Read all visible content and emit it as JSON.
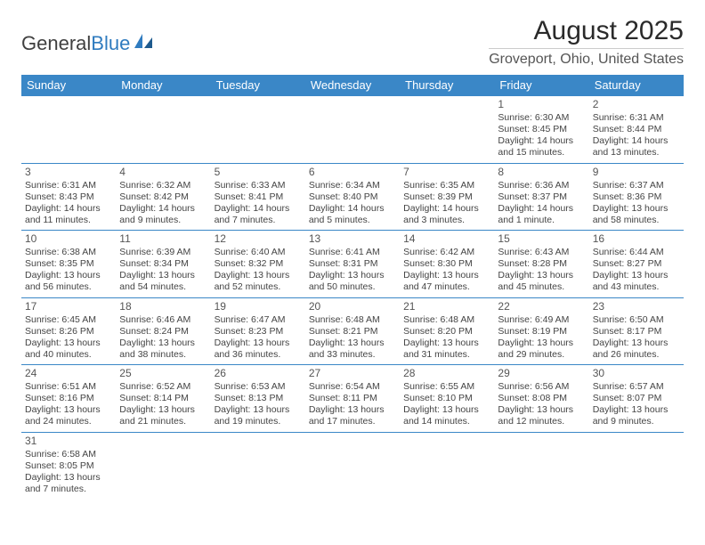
{
  "brand": {
    "part1": "General",
    "part2": "Blue"
  },
  "title": "August 2025",
  "location": "Groveport, Ohio, United States",
  "header_bg": "#3a87c7",
  "header_fg": "#ffffff",
  "row_border": "#3a87c7",
  "weekdays": [
    "Sunday",
    "Monday",
    "Tuesday",
    "Wednesday",
    "Thursday",
    "Friday",
    "Saturday"
  ],
  "weeks": [
    [
      null,
      null,
      null,
      null,
      null,
      {
        "d": "1",
        "sr": "Sunrise: 6:30 AM",
        "ss": "Sunset: 8:45 PM",
        "dl1": "Daylight: 14 hours",
        "dl2": "and 15 minutes."
      },
      {
        "d": "2",
        "sr": "Sunrise: 6:31 AM",
        "ss": "Sunset: 8:44 PM",
        "dl1": "Daylight: 14 hours",
        "dl2": "and 13 minutes."
      }
    ],
    [
      {
        "d": "3",
        "sr": "Sunrise: 6:31 AM",
        "ss": "Sunset: 8:43 PM",
        "dl1": "Daylight: 14 hours",
        "dl2": "and 11 minutes."
      },
      {
        "d": "4",
        "sr": "Sunrise: 6:32 AM",
        "ss": "Sunset: 8:42 PM",
        "dl1": "Daylight: 14 hours",
        "dl2": "and 9 minutes."
      },
      {
        "d": "5",
        "sr": "Sunrise: 6:33 AM",
        "ss": "Sunset: 8:41 PM",
        "dl1": "Daylight: 14 hours",
        "dl2": "and 7 minutes."
      },
      {
        "d": "6",
        "sr": "Sunrise: 6:34 AM",
        "ss": "Sunset: 8:40 PM",
        "dl1": "Daylight: 14 hours",
        "dl2": "and 5 minutes."
      },
      {
        "d": "7",
        "sr": "Sunrise: 6:35 AM",
        "ss": "Sunset: 8:39 PM",
        "dl1": "Daylight: 14 hours",
        "dl2": "and 3 minutes."
      },
      {
        "d": "8",
        "sr": "Sunrise: 6:36 AM",
        "ss": "Sunset: 8:37 PM",
        "dl1": "Daylight: 14 hours",
        "dl2": "and 1 minute."
      },
      {
        "d": "9",
        "sr": "Sunrise: 6:37 AM",
        "ss": "Sunset: 8:36 PM",
        "dl1": "Daylight: 13 hours",
        "dl2": "and 58 minutes."
      }
    ],
    [
      {
        "d": "10",
        "sr": "Sunrise: 6:38 AM",
        "ss": "Sunset: 8:35 PM",
        "dl1": "Daylight: 13 hours",
        "dl2": "and 56 minutes."
      },
      {
        "d": "11",
        "sr": "Sunrise: 6:39 AM",
        "ss": "Sunset: 8:34 PM",
        "dl1": "Daylight: 13 hours",
        "dl2": "and 54 minutes."
      },
      {
        "d": "12",
        "sr": "Sunrise: 6:40 AM",
        "ss": "Sunset: 8:32 PM",
        "dl1": "Daylight: 13 hours",
        "dl2": "and 52 minutes."
      },
      {
        "d": "13",
        "sr": "Sunrise: 6:41 AM",
        "ss": "Sunset: 8:31 PM",
        "dl1": "Daylight: 13 hours",
        "dl2": "and 50 minutes."
      },
      {
        "d": "14",
        "sr": "Sunrise: 6:42 AM",
        "ss": "Sunset: 8:30 PM",
        "dl1": "Daylight: 13 hours",
        "dl2": "and 47 minutes."
      },
      {
        "d": "15",
        "sr": "Sunrise: 6:43 AM",
        "ss": "Sunset: 8:28 PM",
        "dl1": "Daylight: 13 hours",
        "dl2": "and 45 minutes."
      },
      {
        "d": "16",
        "sr": "Sunrise: 6:44 AM",
        "ss": "Sunset: 8:27 PM",
        "dl1": "Daylight: 13 hours",
        "dl2": "and 43 minutes."
      }
    ],
    [
      {
        "d": "17",
        "sr": "Sunrise: 6:45 AM",
        "ss": "Sunset: 8:26 PM",
        "dl1": "Daylight: 13 hours",
        "dl2": "and 40 minutes."
      },
      {
        "d": "18",
        "sr": "Sunrise: 6:46 AM",
        "ss": "Sunset: 8:24 PM",
        "dl1": "Daylight: 13 hours",
        "dl2": "and 38 minutes."
      },
      {
        "d": "19",
        "sr": "Sunrise: 6:47 AM",
        "ss": "Sunset: 8:23 PM",
        "dl1": "Daylight: 13 hours",
        "dl2": "and 36 minutes."
      },
      {
        "d": "20",
        "sr": "Sunrise: 6:48 AM",
        "ss": "Sunset: 8:21 PM",
        "dl1": "Daylight: 13 hours",
        "dl2": "and 33 minutes."
      },
      {
        "d": "21",
        "sr": "Sunrise: 6:48 AM",
        "ss": "Sunset: 8:20 PM",
        "dl1": "Daylight: 13 hours",
        "dl2": "and 31 minutes."
      },
      {
        "d": "22",
        "sr": "Sunrise: 6:49 AM",
        "ss": "Sunset: 8:19 PM",
        "dl1": "Daylight: 13 hours",
        "dl2": "and 29 minutes."
      },
      {
        "d": "23",
        "sr": "Sunrise: 6:50 AM",
        "ss": "Sunset: 8:17 PM",
        "dl1": "Daylight: 13 hours",
        "dl2": "and 26 minutes."
      }
    ],
    [
      {
        "d": "24",
        "sr": "Sunrise: 6:51 AM",
        "ss": "Sunset: 8:16 PM",
        "dl1": "Daylight: 13 hours",
        "dl2": "and 24 minutes."
      },
      {
        "d": "25",
        "sr": "Sunrise: 6:52 AM",
        "ss": "Sunset: 8:14 PM",
        "dl1": "Daylight: 13 hours",
        "dl2": "and 21 minutes."
      },
      {
        "d": "26",
        "sr": "Sunrise: 6:53 AM",
        "ss": "Sunset: 8:13 PM",
        "dl1": "Daylight: 13 hours",
        "dl2": "and 19 minutes."
      },
      {
        "d": "27",
        "sr": "Sunrise: 6:54 AM",
        "ss": "Sunset: 8:11 PM",
        "dl1": "Daylight: 13 hours",
        "dl2": "and 17 minutes."
      },
      {
        "d": "28",
        "sr": "Sunrise: 6:55 AM",
        "ss": "Sunset: 8:10 PM",
        "dl1": "Daylight: 13 hours",
        "dl2": "and 14 minutes."
      },
      {
        "d": "29",
        "sr": "Sunrise: 6:56 AM",
        "ss": "Sunset: 8:08 PM",
        "dl1": "Daylight: 13 hours",
        "dl2": "and 12 minutes."
      },
      {
        "d": "30",
        "sr": "Sunrise: 6:57 AM",
        "ss": "Sunset: 8:07 PM",
        "dl1": "Daylight: 13 hours",
        "dl2": "and 9 minutes."
      }
    ],
    [
      {
        "d": "31",
        "sr": "Sunrise: 6:58 AM",
        "ss": "Sunset: 8:05 PM",
        "dl1": "Daylight: 13 hours",
        "dl2": "and 7 minutes."
      },
      null,
      null,
      null,
      null,
      null,
      null
    ]
  ]
}
